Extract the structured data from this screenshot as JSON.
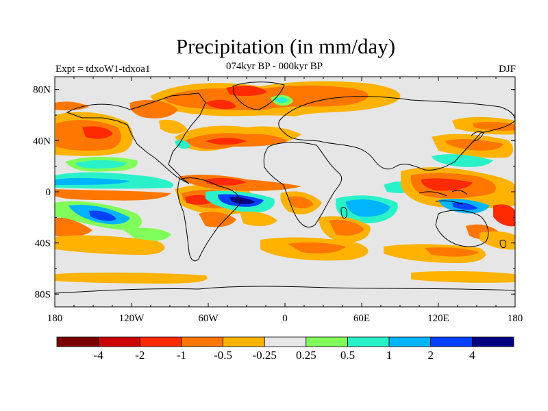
{
  "header": {
    "title": "Precipitation (in mm/day)",
    "left_string": "Expt = tdxoW1-tdxoa1",
    "center_string": "074kyr BP - 000kyr BP",
    "right_string": "DJF"
  },
  "map": {
    "variable": "precipitation difference",
    "units": "mm/day",
    "projection": "cylindrical equidistant",
    "lon_range": [
      -180,
      180
    ],
    "lat_range": [
      -90,
      90
    ],
    "lat_ticks": [
      {
        "value": 80,
        "label": "80N"
      },
      {
        "value": 40,
        "label": "40N"
      },
      {
        "value": 0,
        "label": "0"
      },
      {
        "value": -40,
        "label": "40S"
      },
      {
        "value": -80,
        "label": "80S"
      }
    ],
    "lon_ticks": [
      {
        "value": -180,
        "label": "180"
      },
      {
        "value": -120,
        "label": "120W"
      },
      {
        "value": -60,
        "label": "60W"
      },
      {
        "value": 0,
        "label": "0"
      },
      {
        "value": 60,
        "label": "60E"
      },
      {
        "value": 120,
        "label": "120E"
      },
      {
        "value": 180,
        "label": "180"
      }
    ]
  },
  "colorbar": {
    "colors": [
      "#7a0000",
      "#cc0000",
      "#ff2a00",
      "#ff7700",
      "#ffb300",
      "#e6e6e6",
      "#80ff5a",
      "#29f2c8",
      "#00b4ff",
      "#0040ff",
      "#000080"
    ],
    "labels": [
      "-4",
      "-2",
      "-1",
      "-0.5",
      "-0.25",
      "0.25",
      "0.5",
      "1",
      "2",
      "4"
    ]
  }
}
